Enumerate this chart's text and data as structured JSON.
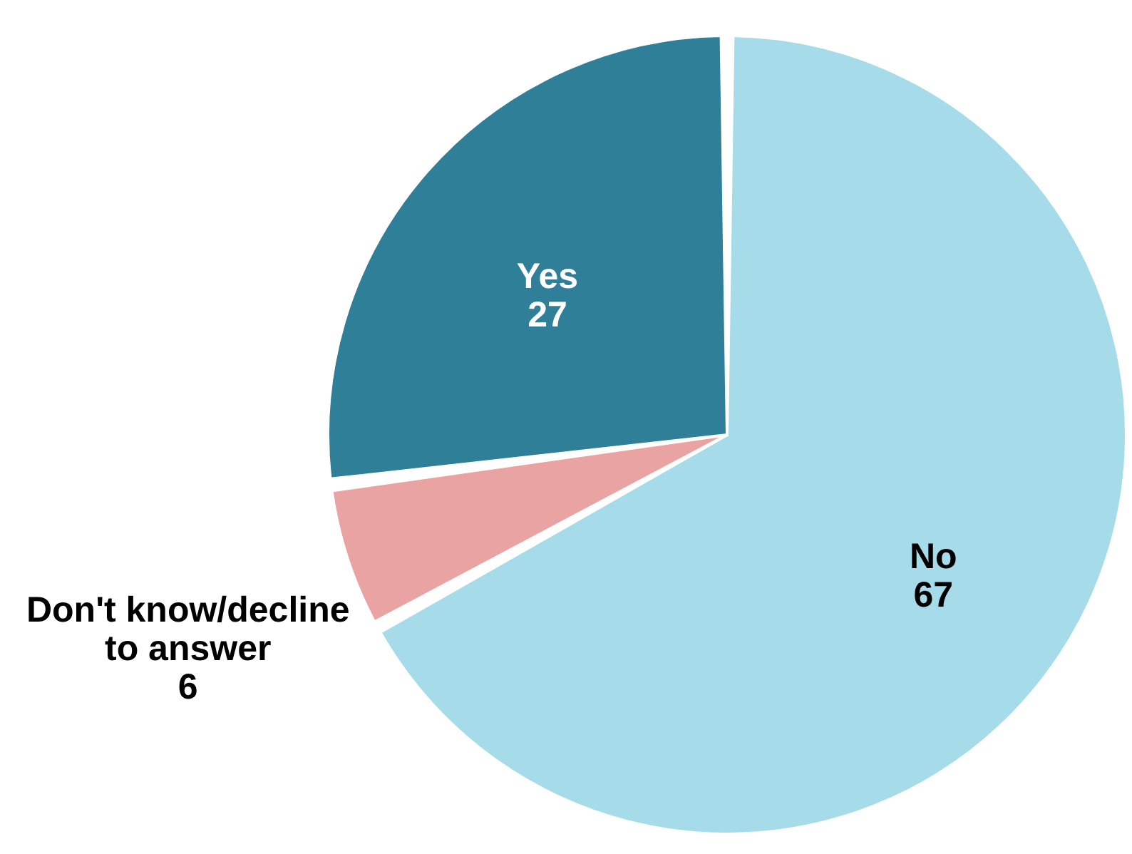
{
  "chart_data": {
    "type": "pie",
    "categories": [
      "No",
      "Don't know/decline to answer",
      "Yes"
    ],
    "values": [
      67,
      6,
      27
    ],
    "colors": [
      "#a6dbea",
      "#e9a3a3",
      "#2f7f98"
    ],
    "data_labels": true
  }
}
